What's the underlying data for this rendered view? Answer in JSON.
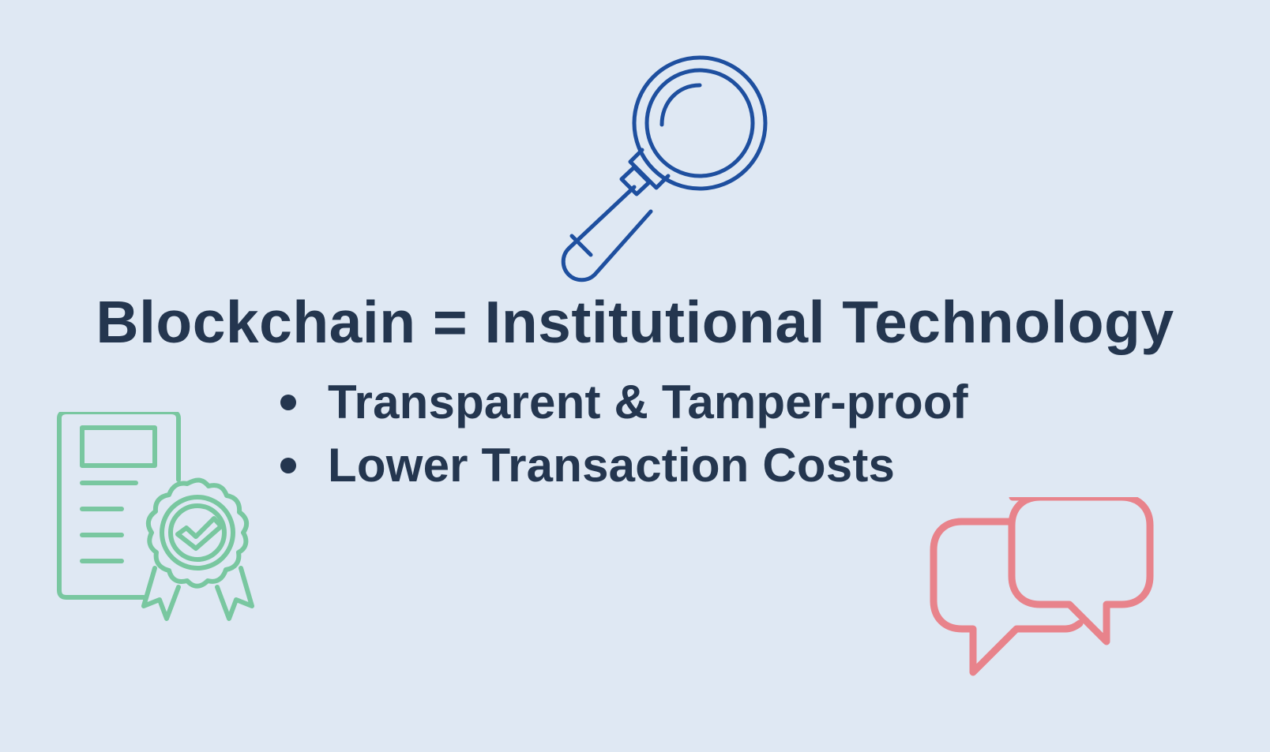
{
  "slide": {
    "title": "Blockchain = Institutional Technology",
    "bullets": [
      "Transparent & Tamper-proof",
      "Lower Transaction Costs"
    ]
  },
  "icons": {
    "top": "magnifying-glass-icon",
    "bottom_left": "certificate-icon",
    "bottom_right": "chat-bubbles-icon"
  },
  "colors": {
    "background": "#dfe8f3",
    "text": "#24364f",
    "magnifier": "#1e4f9f",
    "certificate": "#79c7a0",
    "chat": "#e8838b"
  }
}
